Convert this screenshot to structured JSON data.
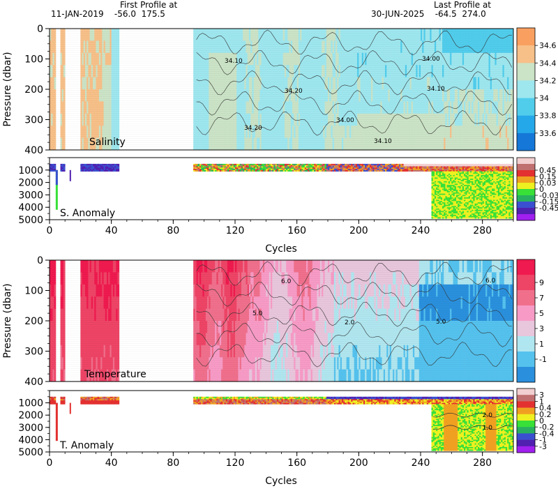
{
  "header": {
    "first_label": "First Profile at",
    "first_detail": "11-JAN-2019    -56.0  175.5",
    "last_label": "Last Profile at",
    "last_detail": "30-JUN-2025    -64.5  274.0"
  },
  "chart_data": [
    {
      "type": "heatmap",
      "title": "",
      "panel_label": "Salinity",
      "ylabel": "Pressure (dbar)",
      "xlim": [
        0,
        300
      ],
      "ylim": [
        400,
        0
      ],
      "yticks": [
        0,
        100,
        200,
        300,
        400
      ],
      "profile_groups": [
        [
          1,
          4
        ],
        [
          8,
          10
        ],
        [
          21,
          45
        ],
        [
          94,
          300
        ]
      ],
      "colorbar": {
        "tick_labels": [
          "34.6",
          "34.4",
          "34.2",
          "34",
          "33.8",
          "33.6"
        ],
        "colors": [
          "#f9a060",
          "#f7c089",
          "#cbe3c6",
          "#9ee7ef",
          "#51cdec",
          "#25a8e9",
          "#1577d8"
        ]
      },
      "contour_labels": [
        "34.10",
        "34.20",
        "34.00"
      ]
    },
    {
      "type": "heatmap",
      "panel_label": "S. Anomaly",
      "xlabel": "Cycles",
      "xlim": [
        0,
        300
      ],
      "ylim": [
        5000,
        0
      ],
      "yticks": [
        1000,
        2000,
        3000,
        4000,
        5000
      ],
      "xticks": [
        0,
        40,
        80,
        120,
        160,
        200,
        240,
        280
      ],
      "colorbar": {
        "tick_labels": [
          "0.45",
          "0.15",
          "0.03",
          "0",
          "-0.03",
          "-0.15",
          "-0.45"
        ],
        "colors": [
          "#f2cfd0",
          "#c07070",
          "#e33030",
          "#f0a020",
          "#eef020",
          "#38e038",
          "#28b060",
          "#3a50d0",
          "#5020b0",
          "#a020f0"
        ]
      }
    },
    {
      "type": "heatmap",
      "panel_label": "Temperature",
      "ylabel": "Pressure (dbar)",
      "xlim": [
        0,
        300
      ],
      "ylim": [
        400,
        0
      ],
      "yticks": [
        0,
        100,
        200,
        300,
        400
      ],
      "colorbar": {
        "tick_labels": [
          "9",
          "7",
          "5",
          "3",
          "1",
          "-1"
        ],
        "colors": [
          "#ef1a4f",
          "#ee4466",
          "#f0708c",
          "#f79bc6",
          "#e8c6dc",
          "#b0e6ef",
          "#55c2ee",
          "#2a90dd"
        ]
      },
      "contour_labels": [
        "6.0",
        "5.0",
        "2.0"
      ]
    },
    {
      "type": "heatmap",
      "panel_label": "T. Anomaly",
      "xlabel": "Cycles",
      "xlim": [
        0,
        300
      ],
      "ylim": [
        5000,
        0
      ],
      "yticks": [
        1000,
        2000,
        3000,
        4000,
        5000
      ],
      "xticks": [
        0,
        40,
        80,
        120,
        160,
        200,
        240,
        280
      ],
      "colorbar": {
        "tick_labels": [
          "3",
          "1",
          "0.4",
          "0.2",
          "0",
          "-0.2",
          "-0.4",
          "-1",
          "-3"
        ],
        "colors": [
          "#f2cfd0",
          "#c07070",
          "#e33030",
          "#f0a020",
          "#eef020",
          "#38e038",
          "#28b060",
          "#3a50d0",
          "#5020b0",
          "#a020f0"
        ]
      },
      "contour_labels": [
        "2.0",
        "1.0"
      ]
    }
  ]
}
